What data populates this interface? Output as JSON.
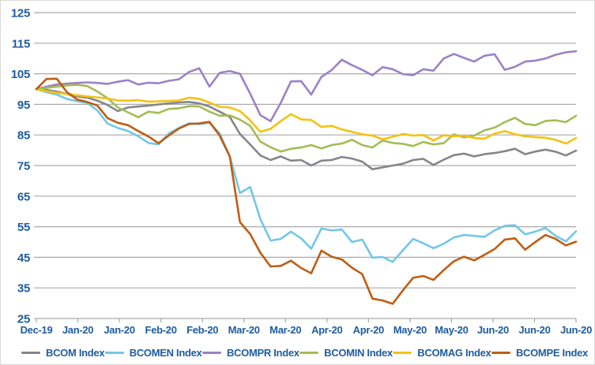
{
  "chart_data": {
    "type": "line",
    "title": "",
    "xlabel": "",
    "ylabel": "",
    "ylim": [
      25,
      125
    ],
    "y_ticks": [
      125,
      115,
      105,
      95,
      85,
      75,
      65,
      55,
      45,
      35,
      25
    ],
    "x_tick_labels": [
      "Dec-19",
      "Jan-20",
      "Jan-20",
      "Feb-20",
      "Feb-20",
      "Mar-20",
      "Mar-20",
      "Apr-20",
      "Apr-20",
      "May-20",
      "May-20",
      "Jun-20",
      "Jun-20",
      "Jun-20"
    ],
    "grid": "horizontal",
    "legend_position": "bottom",
    "series": [
      {
        "name": "BCOM Index",
        "color": "#85868B",
        "values": [
          100,
          99.7,
          99.2,
          98.4,
          97.6,
          97.2,
          96.2,
          94.8,
          92.8,
          94.0,
          94.3,
          94.6,
          95.0,
          95.3,
          95.6,
          95.8,
          95.3,
          94.3,
          92.6,
          90.9,
          85.3,
          81.9,
          78.3,
          76.8,
          78.0,
          76.6,
          76.8,
          75.0,
          76.6,
          76.8,
          77.8,
          77.3,
          76.3,
          73.8,
          74.4,
          75.0,
          75.6,
          76.8,
          77.2,
          75.2,
          76.9,
          78.4,
          78.9,
          78.0,
          78.7,
          79.1,
          79.7,
          80.5,
          78.7,
          79.6,
          80.2,
          79.5,
          78.3,
          79.9
        ]
      },
      {
        "name": "BCOMEN Index",
        "color": "#72C7E7",
        "values": [
          100,
          99.0,
          98.2,
          96.8,
          96.0,
          95.5,
          93.0,
          88.7,
          87.3,
          86.3,
          84.6,
          82.4,
          81.9,
          85.5,
          87.3,
          88.8,
          88.5,
          89.0,
          85.5,
          78.0,
          66.0,
          68.0,
          57.5,
          50.5,
          51.0,
          53.4,
          51.2,
          47.8,
          54.4,
          53.8,
          54.1,
          50.0,
          50.8,
          44.9,
          45.1,
          43.5,
          47.3,
          51.0,
          49.6,
          48.0,
          49.4,
          51.5,
          52.3,
          52.0,
          51.7,
          53.8,
          55.3,
          55.5,
          52.5,
          53.4,
          54.6,
          52.0,
          50.2,
          53.5
        ]
      },
      {
        "name": "BCOMPR Index",
        "color": "#9B82C6",
        "values": [
          100,
          100.8,
          101.5,
          101.8,
          102.0,
          102.2,
          102.0,
          101.7,
          102.4,
          102.9,
          101.5,
          102.1,
          101.9,
          102.7,
          103.2,
          105.6,
          106.8,
          100.8,
          105.3,
          105.9,
          105.0,
          98.5,
          91.5,
          89.5,
          95.5,
          102.5,
          102.6,
          98.2,
          104.0,
          106.2,
          109.6,
          107.8,
          106.3,
          104.5,
          107.2,
          106.5,
          104.9,
          104.5,
          106.5,
          106.0,
          110.0,
          111.5,
          110.2,
          109.0,
          110.9,
          111.4,
          106.3,
          107.3,
          109.0,
          109.3,
          110.0,
          111.2,
          112.0,
          112.4
        ]
      },
      {
        "name": "BCOMIN Index",
        "color": "#A4BC55",
        "values": [
          100,
          100.4,
          100.8,
          101.2,
          101.4,
          101.0,
          99.2,
          97.0,
          94.0,
          92.4,
          90.8,
          92.6,
          92.2,
          93.5,
          93.7,
          94.4,
          94.3,
          92.6,
          91.3,
          91.4,
          90.0,
          88.0,
          82.8,
          81.0,
          79.6,
          80.5,
          80.9,
          81.7,
          80.6,
          81.7,
          82.2,
          83.4,
          81.7,
          80.9,
          83.2,
          82.4,
          82.1,
          81.4,
          82.7,
          81.9,
          82.3,
          85.2,
          84.2,
          84.8,
          86.5,
          87.4,
          89.2,
          90.6,
          88.6,
          88.2,
          89.6,
          89.8,
          89.2,
          91.3
        ]
      },
      {
        "name": "BCOMAG Index",
        "color": "#F5C113",
        "values": [
          100,
          99.3,
          98.8,
          98.4,
          98.0,
          97.6,
          97.3,
          96.9,
          96.3,
          96.2,
          96.4,
          95.9,
          96.0,
          96.1,
          96.3,
          97.2,
          96.8,
          95.6,
          94.2,
          94.0,
          92.8,
          89.8,
          86.0,
          87.0,
          89.5,
          91.8,
          90.1,
          89.9,
          87.6,
          88.0,
          86.8,
          86.0,
          85.2,
          84.8,
          83.6,
          84.4,
          85.3,
          84.8,
          85.0,
          83.2,
          84.9,
          84.6,
          84.8,
          84.0,
          83.8,
          85.4,
          86.3,
          85.2,
          84.6,
          84.3,
          84.1,
          83.4,
          82.2,
          84.0
        ]
      },
      {
        "name": "BCOMPE Index",
        "color": "#BE5D12",
        "values": [
          100,
          103.3,
          103.4,
          99.0,
          96.6,
          95.8,
          94.6,
          90.5,
          89.0,
          88.2,
          86.3,
          84.5,
          82.3,
          84.8,
          87.1,
          88.6,
          88.8,
          89.3,
          84.8,
          78.0,
          56.5,
          52.6,
          46.5,
          42.0,
          42.2,
          43.9,
          41.5,
          39.8,
          47.2,
          45.2,
          44.3,
          41.6,
          39.5,
          31.5,
          30.9,
          29.8,
          34.2,
          38.3,
          38.9,
          37.6,
          40.8,
          43.7,
          45.2,
          44.0,
          45.8,
          47.7,
          50.8,
          51.2,
          47.5,
          50.0,
          52.3,
          51.0,
          48.9,
          50.1
        ]
      }
    ]
  },
  "style": {
    "text_color": "#1E5C9E",
    "grid_color": "#AAAAAC",
    "axis_color": "#A6A6A8",
    "background": "#FFFFFF",
    "y_tick_font_px": 15,
    "x_tick_font_px": 13
  }
}
